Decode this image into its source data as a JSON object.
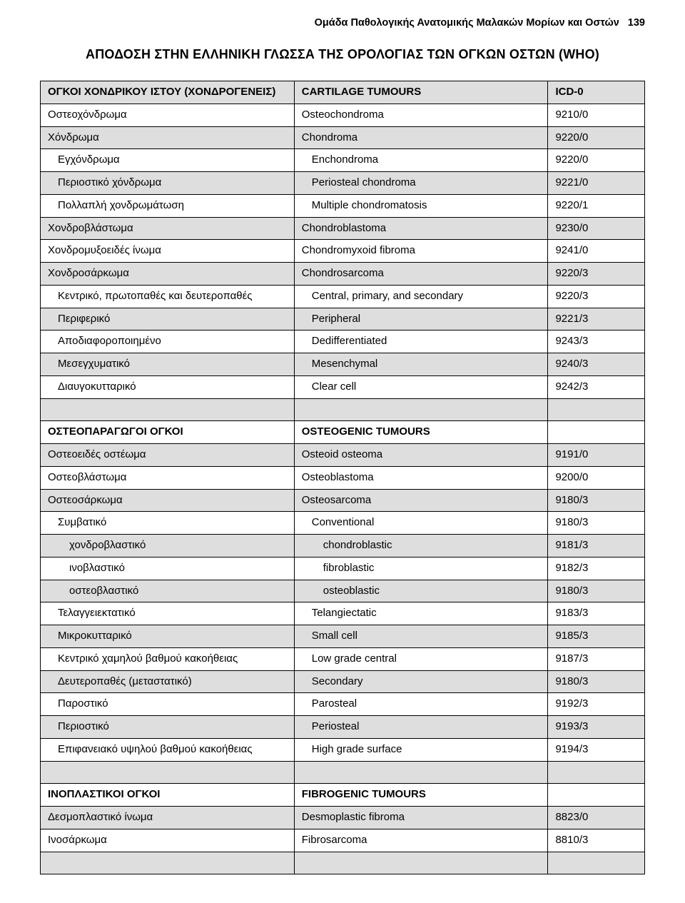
{
  "header": {
    "running_title": "Ομάδα Παθολογικής Ανατομικής Μαλακών Μορίων και Οστών",
    "page_number": "139"
  },
  "title": "ΑΠΟΔΟΣΗ ΣΤΗΝ ΕΛΛΗΝΙΚΗ ΓΛΩΣΣΑ ΤΗΣ ΟΡΟΛΟΓΙΑΣ ΤΩΝ ΟΓΚΩΝ ΟΣΤΩΝ (WHO)",
  "table": {
    "rows": [
      {
        "shade": true,
        "bold": true,
        "gr": "ΟΓΚΟΙ ΧΟΝΔΡΙΚΟΥ ΙΣΤΟΥ (ΧΟΝΔΡΟΓΕΝΕΙΣ)",
        "en": "CARTILAGE TUMOURS",
        "code": "ICD-0",
        "indent": 0
      },
      {
        "shade": false,
        "bold": false,
        "gr": "Οστεοχόνδρωμα",
        "en": "Osteochondroma",
        "code": "9210/0",
        "indent": 0
      },
      {
        "shade": true,
        "bold": false,
        "gr": "Χόνδρωμα",
        "en": "Chondroma",
        "code": "9220/0",
        "indent": 0
      },
      {
        "shade": false,
        "bold": false,
        "gr": "Εγχόνδρωμα",
        "en": "Enchondroma",
        "code": "9220/0",
        "indent": 1
      },
      {
        "shade": true,
        "bold": false,
        "gr": "Περιοστικό χόνδρωμα",
        "en": "Periosteal chondroma",
        "code": "9221/0",
        "indent": 1
      },
      {
        "shade": false,
        "bold": false,
        "gr": "Πολλαπλή χονδρωμάτωση",
        "en": "Multiple chondromatosis",
        "code": "9220/1",
        "indent": 1
      },
      {
        "shade": true,
        "bold": false,
        "gr": "Χονδροβλάστωμα",
        "en": "Chondroblastoma",
        "code": "9230/0",
        "indent": 0
      },
      {
        "shade": false,
        "bold": false,
        "gr": "Χονδρομυξοειδές ίνωμα",
        "en": "Chondromyxoid fibroma",
        "code": "9241/0",
        "indent": 0
      },
      {
        "shade": true,
        "bold": false,
        "gr": "Χονδροσάρκωμα",
        "en": "Chondrosarcoma",
        "code": "9220/3",
        "indent": 0
      },
      {
        "shade": false,
        "bold": false,
        "gr": "Κεντρικό, πρωτοπαθές και δευτεροπαθές",
        "en": "Central, primary, and secondary",
        "code": "9220/3",
        "indent": 1
      },
      {
        "shade": true,
        "bold": false,
        "gr": "Περιφερικό",
        "en": "Peripheral",
        "code": "9221/3",
        "indent": 1
      },
      {
        "shade": false,
        "bold": false,
        "gr": "Αποδιαφοροποιημένο",
        "en": "Dedifferentiated",
        "code": "9243/3",
        "indent": 1
      },
      {
        "shade": true,
        "bold": false,
        "gr": "Μεσεγχυματικό",
        "en": "Mesenchymal",
        "code": "9240/3",
        "indent": 1
      },
      {
        "shade": false,
        "bold": false,
        "gr": "Διαυγοκυτταρικό",
        "en": "Clear cell",
        "code": "9242/3",
        "indent": 1
      },
      {
        "shade": true,
        "bold": false,
        "gr": "",
        "en": "",
        "code": "",
        "indent": 0
      },
      {
        "shade": false,
        "bold": true,
        "gr": "ΟΣΤΕΟΠΑΡΑΓΩΓΟΙ ΟΓΚΟΙ",
        "en": "OSTEOGENIC TUMOURS",
        "code": "",
        "indent": 0
      },
      {
        "shade": true,
        "bold": false,
        "gr": "Οστεοειδές οστέωμα",
        "en": "Osteoid osteoma",
        "code": "9191/0",
        "indent": 0
      },
      {
        "shade": false,
        "bold": false,
        "gr": "Οστεοβλάστωμα",
        "en": "Osteoblastoma",
        "code": "9200/0",
        "indent": 0
      },
      {
        "shade": true,
        "bold": false,
        "gr": "Οστεοσάρκωμα",
        "en": "Osteosarcoma",
        "code": "9180/3",
        "indent": 0
      },
      {
        "shade": false,
        "bold": false,
        "gr": "Συμβατικό",
        "en": "Conventional",
        "code": "9180/3",
        "indent": 1
      },
      {
        "shade": true,
        "bold": false,
        "gr": "χονδροβλαστικό",
        "en": "chondroblastic",
        "code": "9181/3",
        "indent": 2
      },
      {
        "shade": false,
        "bold": false,
        "gr": "ινοβλαστικό",
        "en": "fibroblastic",
        "code": "9182/3",
        "indent": 2
      },
      {
        "shade": true,
        "bold": false,
        "gr": "οστεοβλαστικό",
        "en": "osteoblastic",
        "code": "9180/3",
        "indent": 2
      },
      {
        "shade": false,
        "bold": false,
        "gr": "Τελαγγειεκτατικό",
        "en": "Telangiectatic",
        "code": "9183/3",
        "indent": 1
      },
      {
        "shade": true,
        "bold": false,
        "gr": "Μικροκυτταρικό",
        "en": "Small cell",
        "code": "9185/3",
        "indent": 1
      },
      {
        "shade": false,
        "bold": false,
        "gr": "Κεντρικό χαμηλού βαθμού κακοήθειας",
        "en": "Low grade central",
        "code": "9187/3",
        "indent": 1
      },
      {
        "shade": true,
        "bold": false,
        "gr": "Δευτεροπαθές (μεταστατικό)",
        "en": "Secondary",
        "code": "9180/3",
        "indent": 1
      },
      {
        "shade": false,
        "bold": false,
        "gr": "Παροστικό",
        "en": "Parosteal",
        "code": "9192/3",
        "indent": 1
      },
      {
        "shade": true,
        "bold": false,
        "gr": "Περιοστικό",
        "en": "Periosteal",
        "code": "9193/3",
        "indent": 1
      },
      {
        "shade": false,
        "bold": false,
        "gr": "Επιφανειακό υψηλού βαθμού κακοήθειας",
        "en": "High grade surface",
        "code": "9194/3",
        "indent": 1
      },
      {
        "shade": true,
        "bold": false,
        "gr": "",
        "en": "",
        "code": "",
        "indent": 0
      },
      {
        "shade": false,
        "bold": true,
        "gr": "ΙΝΟΠΛΑΣΤΙΚΟΙ ΟΓΚΟΙ",
        "en": "FIBROGENIC TUMOURS",
        "code": "",
        "indent": 0
      },
      {
        "shade": true,
        "bold": false,
        "gr": "Δεσμοπλαστικό ίνωμα",
        "en": "Desmoplastic fibroma",
        "code": "8823/0",
        "indent": 0
      },
      {
        "shade": false,
        "bold": false,
        "gr": "Ινοσάρκωμα",
        "en": "Fibrosarcoma",
        "code": "8810/3",
        "indent": 0
      },
      {
        "shade": true,
        "bold": false,
        "gr": "",
        "en": "",
        "code": "",
        "indent": 0
      }
    ],
    "colors": {
      "shade_bg": "#dedede",
      "border": "#000000",
      "page_bg": "#ffffff"
    }
  }
}
